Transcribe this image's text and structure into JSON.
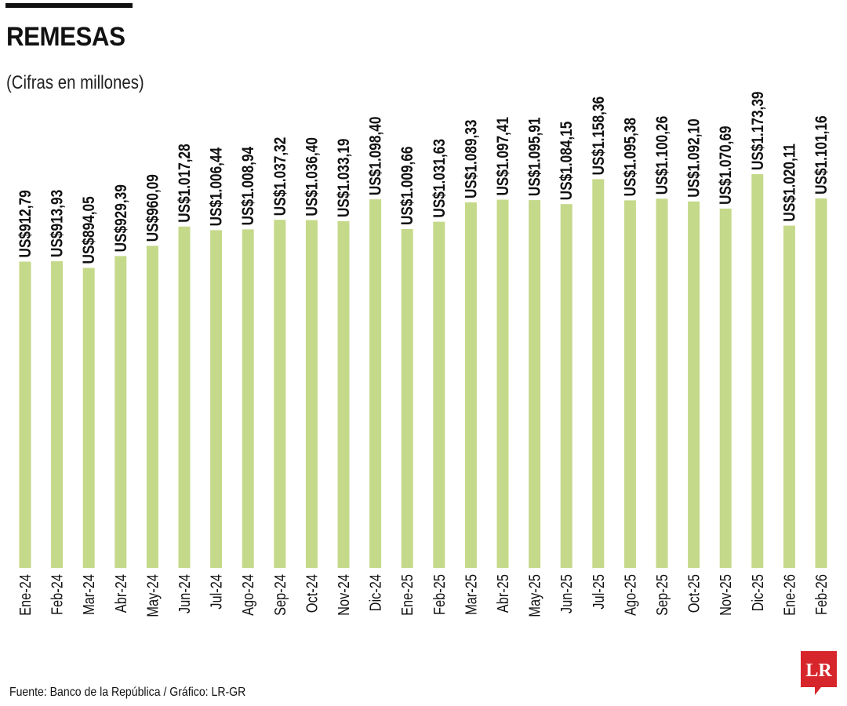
{
  "header": {
    "title": "REMESAS",
    "subtitle": "(Cifras en millones)"
  },
  "footer": {
    "source": "Fuente: Banco de la República / Gráfico: LR-GR",
    "logo_text": "LR"
  },
  "colors": {
    "bar": "#c5d98a",
    "label": "#111111",
    "logo": "#d7262b"
  },
  "chart_data": {
    "type": "bar",
    "title": "REMESAS",
    "subtitle": "(Cifras en millones)",
    "categories": [
      "Ene-24",
      "Feb-24",
      "Mar-24",
      "Abr-24",
      "May-24",
      "Jun-24",
      "Jul-24",
      "Ago-24",
      "Sep-24",
      "Oct-24",
      "Nov-24",
      "Dic-24",
      "Ene-25",
      "Feb-25",
      "Mar-25",
      "Abr-25",
      "May-25",
      "Jun-25",
      "Jul-25",
      "Ago-25",
      "Sep-25",
      "Oct-25",
      "Nov-25",
      "Dic-25",
      "Ene-26",
      "Feb-26"
    ],
    "values": [
      912.79,
      913.93,
      894.05,
      929.39,
      960.09,
      1017.28,
      1006.44,
      1008.94,
      1037.32,
      1036.4,
      1033.19,
      1098.4,
      1009.66,
      1031.63,
      1089.33,
      1097.41,
      1095.91,
      1084.15,
      1158.36,
      1095.38,
      1100.26,
      1092.1,
      1070.69,
      1173.39,
      1020.11,
      1101.16
    ],
    "data_labels": [
      "US$912,79",
      "US$913,93",
      "US$894,05",
      "US$929,39",
      "US$960,09",
      "US$1.017,28",
      "US$1.006,44",
      "US$1.008,94",
      "US$1.037,32",
      "US$1.036,40",
      "US$1.033,19",
      "US$1.098,40",
      "US$1.009,66",
      "US$1.031,63",
      "US$1.089,33",
      "US$1.097,41",
      "US$1.095,91",
      "US$1.084,15",
      "US$1.158,36",
      "US$1.095,38",
      "US$1.100,26",
      "US$1.092,10",
      "US$1.070,69",
      "US$1.173,39",
      "US$1.020,11",
      "US$1.101,16"
    ],
    "ylim": [
      0,
      1173.39
    ],
    "grid": false,
    "legend": "none"
  }
}
